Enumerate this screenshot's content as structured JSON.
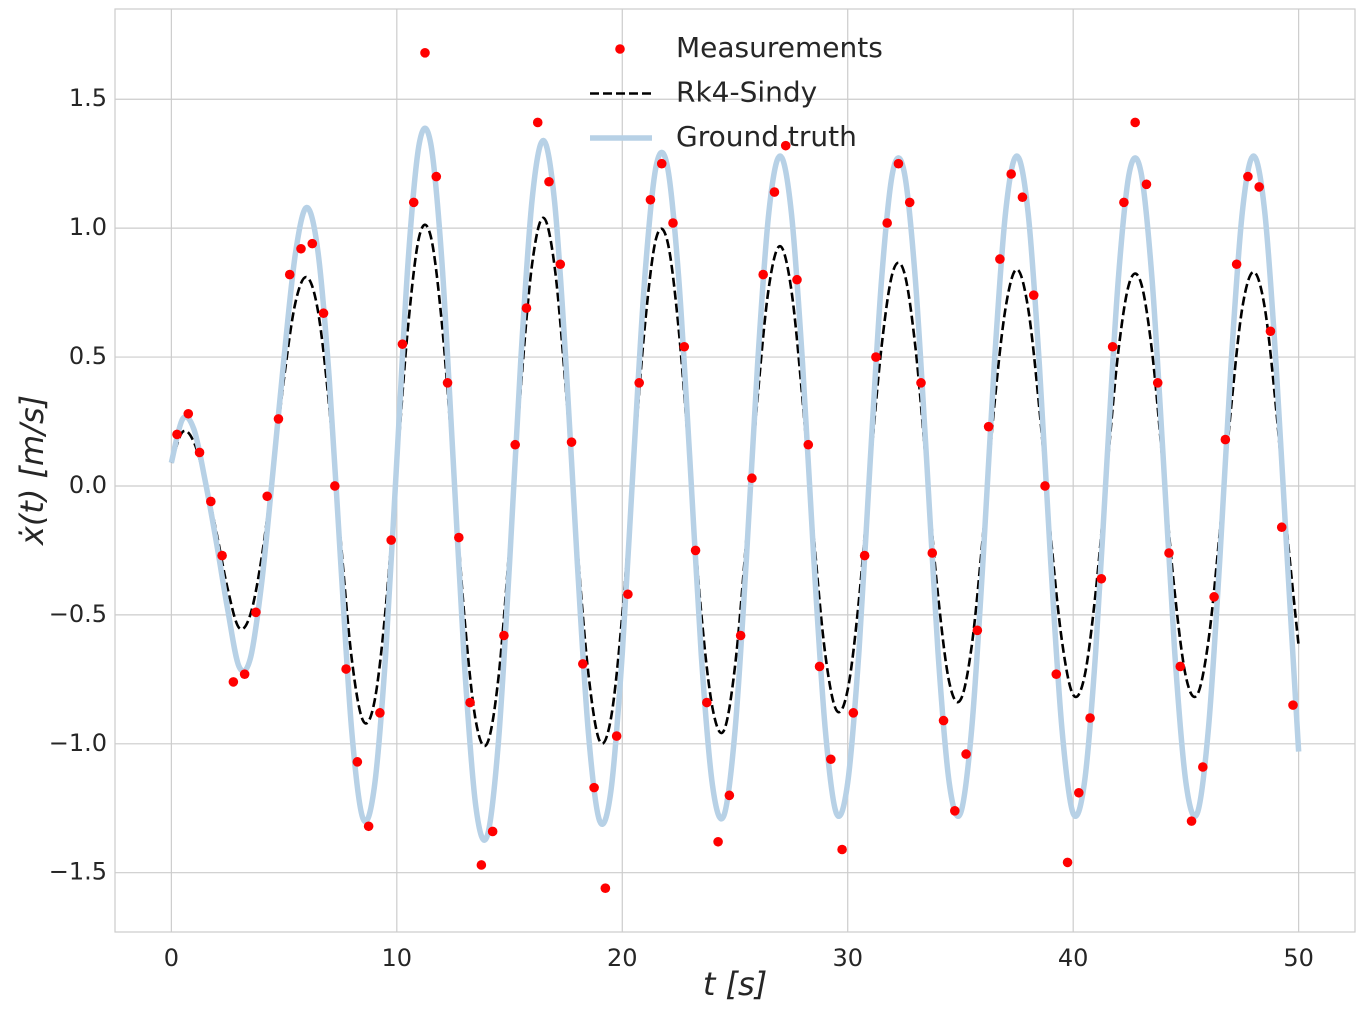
{
  "chart_data": {
    "type": "line",
    "xlabel": "t [s]",
    "ylabel": "ẋ(t) [m/s]",
    "xlim": [
      -2.5,
      52.5
    ],
    "ylim": [
      -1.73,
      1.85
    ],
    "xticks": [
      0,
      10,
      20,
      30,
      40,
      50
    ],
    "yticks": [
      {
        "value": -1.5,
        "label": "−1.5"
      },
      {
        "value": -1.0,
        "label": "−1.0"
      },
      {
        "value": -0.5,
        "label": "−0.5"
      },
      {
        "value": 0.0,
        "label": "0.0"
      },
      0.5,
      {
        "value": 1.0,
        "label": "1.0"
      },
      1.5
    ],
    "grid": true,
    "legend": "upper center",
    "series": [
      {
        "name": "Measurements",
        "style": "markers",
        "color": "#ff0000",
        "x": [
          0.25,
          0.75,
          1.25,
          1.75,
          2.25,
          2.75,
          3.25,
          3.75,
          4.25,
          4.75,
          5.25,
          5.75,
          6.25,
          6.75,
          7.25,
          7.75,
          8.25,
          8.75,
          9.25,
          9.75,
          10.25,
          10.75,
          11.25,
          11.75,
          12.25,
          12.75,
          13.25,
          13.75,
          14.25,
          14.75,
          15.25,
          15.75,
          16.25,
          16.75,
          17.25,
          17.75,
          18.25,
          18.75,
          19.25,
          19.75,
          20.25,
          20.75,
          21.25,
          21.75,
          22.25,
          22.75,
          23.25,
          23.75,
          24.25,
          24.75,
          25.25,
          25.75,
          26.25,
          26.75,
          27.25,
          27.75,
          28.25,
          28.75,
          29.25,
          29.75,
          30.25,
          30.75,
          31.25,
          31.75,
          32.25,
          32.75,
          33.25,
          33.75,
          34.25,
          34.75,
          35.25,
          35.75,
          36.25,
          36.75,
          37.25,
          37.75,
          38.25,
          38.75,
          39.25,
          39.75,
          40.25,
          40.75,
          41.25,
          41.75,
          42.25,
          42.75,
          43.25,
          43.75,
          44.25,
          44.75,
          45.25,
          45.75,
          46.25,
          46.75,
          47.25,
          47.75,
          48.25,
          48.75,
          49.25,
          49.75
        ],
        "values": [
          0.2,
          0.28,
          0.13,
          -0.06,
          -0.27,
          -0.76,
          -0.73,
          -0.49,
          -0.04,
          0.26,
          0.82,
          0.92,
          0.94,
          0.67,
          0.0,
          -0.71,
          -1.07,
          -1.32,
          -0.88,
          -0.21,
          0.55,
          1.1,
          1.68,
          1.2,
          0.4,
          -0.2,
          -0.84,
          -1.47,
          -1.34,
          -0.58,
          0.16,
          0.69,
          1.41,
          1.18,
          0.86,
          0.17,
          -0.69,
          -1.17,
          -1.56,
          -0.97,
          -0.42,
          0.4,
          1.11,
          1.25,
          1.02,
          0.54,
          -0.25,
          -0.84,
          -1.38,
          -1.2,
          -0.58,
          0.03,
          0.82,
          1.14,
          1.32,
          0.8,
          0.16,
          -0.7,
          -1.06,
          -1.41,
          -0.88,
          -0.27,
          0.5,
          1.02,
          1.25,
          1.1,
          0.4,
          -0.26,
          -0.91,
          -1.26,
          -1.04,
          -0.56,
          0.23,
          0.88,
          1.21,
          1.12,
          0.74,
          0.0,
          -0.73,
          -1.46,
          -1.19,
          -0.9,
          -0.36,
          0.54,
          1.1,
          1.41,
          1.17,
          0.4,
          -0.26,
          -0.7,
          -1.3,
          -1.09,
          -0.43,
          0.18,
          0.86,
          1.2,
          1.16,
          0.6,
          -0.16,
          -0.85
        ]
      },
      {
        "name": "Rk4-Sindy",
        "style": "dashed",
        "color": "#000000",
        "x": [
          0,
          0.5,
          1,
          1.5,
          2,
          2.5,
          3,
          3.5,
          4,
          4.5,
          5,
          5.5,
          6,
          6.5,
          7,
          7.5,
          8,
          8.5,
          9,
          9.5,
          10,
          10.5,
          11,
          11.5,
          12,
          12.5,
          13,
          13.5,
          14,
          14.5,
          15,
          15.5,
          16,
          16.5,
          17,
          17.5,
          18,
          18.5,
          19,
          19.5,
          20,
          20.5,
          21,
          21.5,
          22,
          22.5,
          23,
          23.5,
          24,
          24.5,
          25,
          25.5,
          26,
          26.5,
          27,
          27.5,
          28,
          28.5,
          29,
          29.5,
          30,
          30.5,
          31,
          31.5,
          32,
          32.5,
          33,
          33.5,
          34,
          34.5,
          35,
          35.5,
          36,
          36.5,
          37,
          37.5,
          38,
          38.5,
          39,
          39.5,
          40,
          40.5,
          41,
          41.5,
          42,
          42.5,
          43,
          43.5,
          44,
          44.5,
          45,
          45.5,
          46,
          46.5,
          47,
          47.5,
          48,
          48.5,
          49,
          49.5,
          50
        ],
        "values": [
          0.09,
          0.21,
          0.17,
          0.02,
          -0.18,
          -0.4,
          -0.55,
          -0.5,
          -0.28,
          0.05,
          0.42,
          0.71,
          0.81,
          0.68,
          0.31,
          -0.2,
          -0.67,
          -0.91,
          -0.84,
          -0.48,
          0.07,
          0.62,
          0.97,
          0.97,
          0.63,
          0.08,
          -0.51,
          -0.91,
          -1.0,
          -0.75,
          -0.23,
          0.38,
          0.86,
          1.04,
          0.85,
          0.37,
          -0.23,
          -0.73,
          -0.99,
          -0.9,
          -0.5,
          0.08,
          0.62,
          0.96,
          0.95,
          0.61,
          0.07,
          -0.49,
          -0.86,
          -0.95,
          -0.7,
          -0.21,
          0.34,
          0.77,
          0.93,
          0.76,
          0.33,
          -0.2,
          -0.65,
          -0.87,
          -0.79,
          -0.44,
          0.07,
          0.54,
          0.83,
          0.83,
          0.54,
          0.06,
          -0.42,
          -0.76,
          -0.83,
          -0.62,
          -0.19,
          0.31,
          0.69,
          0.84,
          0.69,
          0.3,
          -0.19,
          -0.6,
          -0.81,
          -0.74,
          -0.41,
          0.06,
          0.52,
          0.79,
          0.79,
          0.52,
          0.06,
          -0.41,
          -0.74,
          -0.81,
          -0.6,
          -0.18,
          0.3,
          0.69,
          0.83,
          0.69,
          0.3,
          -0.19,
          -0.62
        ]
      },
      {
        "name": "Ground truth",
        "style": "solid",
        "color": "#b7d1e6",
        "x": [
          0,
          0.5,
          1,
          1.5,
          2,
          2.5,
          3,
          3.5,
          4,
          4.5,
          5,
          5.5,
          6,
          6.5,
          7,
          7.5,
          8,
          8.5,
          9,
          9.5,
          10,
          10.5,
          11,
          11.5,
          12,
          12.5,
          13,
          13.5,
          14,
          14.5,
          15,
          15.5,
          16,
          16.5,
          17,
          17.5,
          18,
          18.5,
          19,
          19.5,
          20,
          20.5,
          21,
          21.5,
          22,
          22.5,
          23,
          23.5,
          24,
          24.5,
          25,
          25.5,
          26,
          26.5,
          27,
          27.5,
          28,
          28.5,
          29,
          29.5,
          30,
          30.5,
          31,
          31.5,
          32,
          32.5,
          33,
          33.5,
          34,
          34.5,
          35,
          35.5,
          36,
          36.5,
          37,
          37.5,
          38,
          38.5,
          39,
          39.5,
          40,
          40.5,
          41,
          41.5,
          42,
          42.5,
          43,
          43.5,
          44,
          44.5,
          45,
          45.5,
          46,
          46.5,
          47,
          47.5,
          48,
          48.5,
          49,
          49.5,
          50
        ],
        "values": [
          0.09,
          0.26,
          0.22,
          0.02,
          -0.22,
          -0.48,
          -0.7,
          -0.67,
          -0.38,
          0.05,
          0.5,
          0.9,
          1.08,
          0.91,
          0.42,
          -0.28,
          -0.95,
          -1.29,
          -1.17,
          -0.66,
          0.1,
          0.87,
          1.33,
          1.33,
          0.87,
          0.1,
          -0.69,
          -1.24,
          -1.36,
          -1.0,
          -0.3,
          0.49,
          1.11,
          1.34,
          1.1,
          0.48,
          -0.29,
          -0.96,
          -1.3,
          -1.18,
          -0.65,
          0.1,
          0.81,
          1.24,
          1.24,
          0.81,
          0.1,
          -0.65,
          -1.16,
          -1.28,
          -0.95,
          -0.29,
          0.47,
          1.06,
          1.28,
          1.06,
          0.47,
          -0.29,
          -0.94,
          -1.27,
          -1.15,
          -0.64,
          0.1,
          0.8,
          1.22,
          1.22,
          0.8,
          0.1,
          -0.64,
          -1.15,
          -1.27,
          -0.94,
          -0.29,
          0.47,
          1.06,
          1.28,
          1.06,
          0.47,
          -0.29,
          -0.94,
          -1.27,
          -1.15,
          -0.64,
          0.1,
          0.8,
          1.22,
          1.22,
          0.8,
          0.1,
          -0.64,
          -1.15,
          -1.27,
          -0.94,
          -0.29,
          0.47,
          1.06,
          1.28,
          1.06,
          0.47,
          -0.29,
          -1.03
        ]
      }
    ]
  }
}
